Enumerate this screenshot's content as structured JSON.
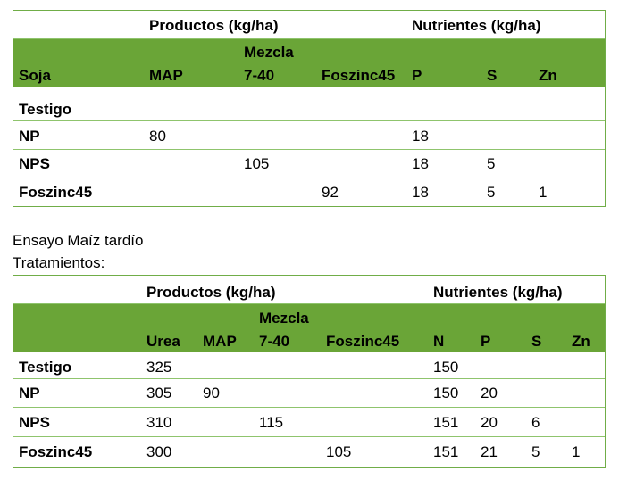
{
  "soja": {
    "group_products": "Productos (kg/ha)",
    "group_nutrients": "Nutrientes (kg/ha)",
    "headers": {
      "crop": "Soja",
      "map": "MAP",
      "mezcla_line1": "Mezcla",
      "mezcla_line2": "7-40",
      "foszinc": "Foszinc45",
      "p": "P",
      "s": "S",
      "zn": "Zn"
    },
    "rows": [
      {
        "name": "Testigo",
        "map": "",
        "mezcla": "",
        "foszinc": "",
        "p": "",
        "s": "",
        "zn": ""
      },
      {
        "name": "NP",
        "map": "80",
        "mezcla": "",
        "foszinc": "",
        "p": "18",
        "s": "",
        "zn": ""
      },
      {
        "name": "NPS",
        "map": "",
        "mezcla": "105",
        "foszinc": "",
        "p": "18",
        "s": "5",
        "zn": ""
      },
      {
        "name": "Foszinc45",
        "map": "",
        "mezcla": "",
        "foszinc": "92",
        "p": "18",
        "s": "5",
        "zn": "1"
      }
    ]
  },
  "caption": {
    "line1": "Ensayo Maíz tardío",
    "line2": "Tratamientos:"
  },
  "maiz": {
    "group_products": "Productos (kg/ha)",
    "group_nutrients": "Nutrientes (kg/ha)",
    "headers": {
      "urea": "Urea",
      "map": "MAP",
      "mezcla_line1": "Mezcla",
      "mezcla_line2": "7-40",
      "foszinc": "Foszinc45",
      "n": "N",
      "p": "P",
      "s": "S",
      "zn": "Zn"
    },
    "rows": [
      {
        "name": "Testigo",
        "urea": "325",
        "map": "",
        "mezcla": "",
        "foszinc": "",
        "n": "150",
        "p": "",
        "s": "",
        "zn": ""
      },
      {
        "name": "NP",
        "urea": "305",
        "map": "90",
        "mezcla": "",
        "foszinc": "",
        "n": "150",
        "p": "20",
        "s": "",
        "zn": ""
      },
      {
        "name": "NPS",
        "urea": "310",
        "map": "",
        "mezcla": "115",
        "foszinc": "",
        "n": "151",
        "p": "20",
        "s": "6",
        "zn": ""
      },
      {
        "name": "Foszinc45",
        "urea": "300",
        "map": "",
        "mezcla": "",
        "foszinc": "105",
        "n": "151",
        "p": "21",
        "s": "5",
        "zn": "1"
      }
    ]
  },
  "colors": {
    "header_green": "#6aa537",
    "border_green": "#70ad47"
  }
}
